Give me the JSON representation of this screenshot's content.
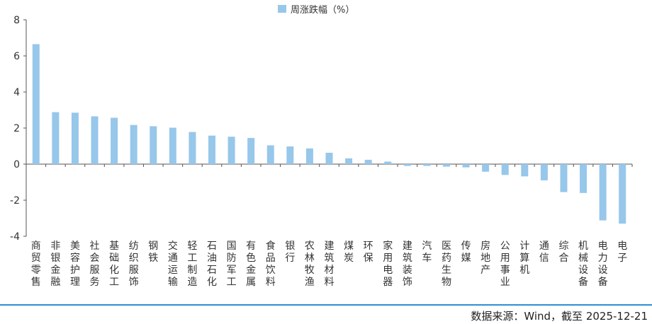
{
  "chart_data": {
    "type": "bar",
    "legend": [
      "周涨跌幅（%）"
    ],
    "legend_position": "top-center",
    "categories": [
      "商贸零售",
      "非银金融",
      "美容护理",
      "社会服务",
      "基础化工",
      "纺织服饰",
      "钢铁",
      "交通运输",
      "轻工制造",
      "石油石化",
      "国防军工",
      "有色金属",
      "食品饮料",
      "银行",
      "农林牧渔",
      "建筑材料",
      "煤炭",
      "环保",
      "家用电器",
      "建筑装饰",
      "汽车",
      "医药生物",
      "传媒",
      "房地产",
      "公用事业",
      "计算机",
      "通信",
      "综合",
      "机械设备",
      "电力设备",
      "电子"
    ],
    "series": [
      {
        "name": "周涨跌幅（%）",
        "values": [
          6.65,
          2.88,
          2.85,
          2.65,
          2.57,
          2.17,
          2.1,
          2.02,
          1.78,
          1.58,
          1.52,
          1.45,
          1.04,
          0.98,
          0.87,
          0.63,
          0.32,
          0.24,
          0.14,
          -0.1,
          -0.1,
          -0.14,
          -0.18,
          -0.42,
          -0.6,
          -0.68,
          -0.9,
          -1.55,
          -1.6,
          -3.12,
          -3.3
        ]
      }
    ],
    "ylim": [
      -4,
      8
    ],
    "yticks": [
      -4,
      -2,
      0,
      2,
      4,
      6,
      8
    ],
    "grid": false,
    "bar_color": "#97c7ea"
  },
  "footer": {
    "source": "数据来源：Wind，截至 2025-12-21"
  }
}
